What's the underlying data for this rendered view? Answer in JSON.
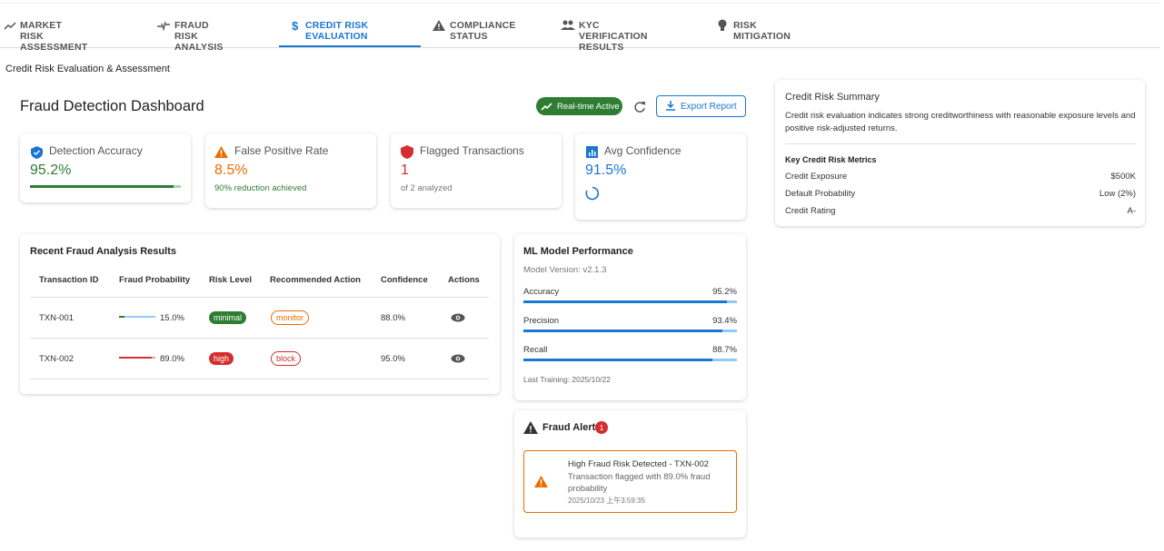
{
  "tabs": [
    "MARKET RISK ASSESSMENT",
    "FRAUD RISK ANALYSIS",
    "CREDIT RISK EVALUATION",
    "COMPLIANCE STATUS",
    "KYC VERIFICATION RESULTS",
    "RISK MITIGATION"
  ],
  "page_title": "Credit Risk Evaluation & Assessment",
  "dashboard": {
    "title": "Fraud Detection Dashboard",
    "status_chip": "Real-time Active",
    "export_button": "Export Report",
    "stats": [
      {
        "label": "Detection Accuracy",
        "value": {
          "value": 95.2,
          "label": "95.2%"
        }
      },
      {
        "label": "False Positive Rate",
        "value": {
          "value": 8.5,
          "label": "8.5%"
        },
        "note": "90% reduction achieved"
      },
      {
        "label": "Flagged Transactions",
        "value": 1,
        "note": "of 2 analyzed"
      },
      {
        "label": "Avg Confidence",
        "value": {
          "value": 91.5,
          "label": "91.5%"
        }
      }
    ]
  },
  "results": {
    "title": "Recent Fraud Analysis Results",
    "headers": [
      "Transaction ID",
      "Fraud Probability",
      "Risk Level",
      "Recommended Action",
      "Confidence",
      "Actions"
    ],
    "rows": [
      {
        "id": "TXN-001",
        "fraud_probability": {
          "value": 15.0,
          "label": "15.0%"
        },
        "risk_level": "minimal",
        "action": "monitor",
        "confidence": "88.0%"
      },
      {
        "id": "TXN-002",
        "fraud_probability": {
          "value": 89.0,
          "label": "89.0%"
        },
        "risk_level": "high",
        "action": "block",
        "confidence": "95.0%"
      }
    ]
  },
  "model": {
    "title": "ML Model Performance",
    "version": "Model Version: v2.1.3",
    "metrics": [
      {
        "name": "Accuracy",
        "value": {
          "value": 95.2,
          "label": "95.2%"
        }
      },
      {
        "name": "Precision",
        "value": {
          "value": 93.4,
          "label": "93.4%"
        }
      },
      {
        "name": "Recall",
        "value": {
          "value": 88.7,
          "label": "88.7%"
        }
      }
    ],
    "last_training": "Last Training: 2025/10/22"
  },
  "alerts": {
    "title": "Fraud Alerts",
    "count": 1,
    "items": [
      {
        "title": "High Fraud Risk Detected - TXN-002",
        "message": "Transaction flagged with 89.0% fraud probability",
        "time": "2025/10/23 上午3:59:35"
      }
    ]
  },
  "summary": {
    "title": "Credit Risk Summary",
    "description": "Credit risk evaluation indicates strong creditworthiness with reasonable exposure levels and positive risk-adjusted returns.",
    "metrics_title": "Key Credit Risk Metrics",
    "rows": [
      {
        "name": "Credit Exposure",
        "value": "$500K"
      },
      {
        "name": "Default Probability",
        "value": "Low (2%)"
      },
      {
        "name": "Credit Rating",
        "value": "A-"
      }
    ]
  }
}
